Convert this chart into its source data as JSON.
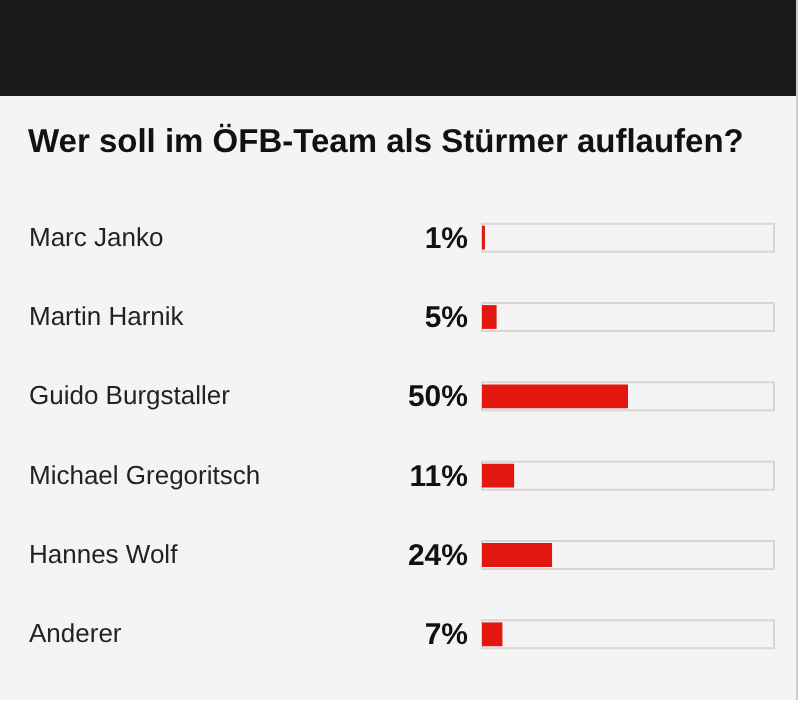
{
  "chart_data": {
    "type": "bar",
    "orientation": "horizontal",
    "title": "Wer soll im ÖFB-Team als Stürmer auflaufen?",
    "categories": [
      "Marc Janko",
      "Martin Harnik",
      "Guido Burgstaller",
      "Michael Gregoritsch",
      "Hannes Wolf",
      "Anderer"
    ],
    "values": [
      1,
      5,
      50,
      11,
      24,
      7
    ],
    "value_labels": [
      "1%",
      "5%",
      "50%",
      "11%",
      "24%",
      "7%"
    ],
    "color": "#e3170f",
    "xlim": [
      0,
      100
    ],
    "tick_labels": "y"
  }
}
